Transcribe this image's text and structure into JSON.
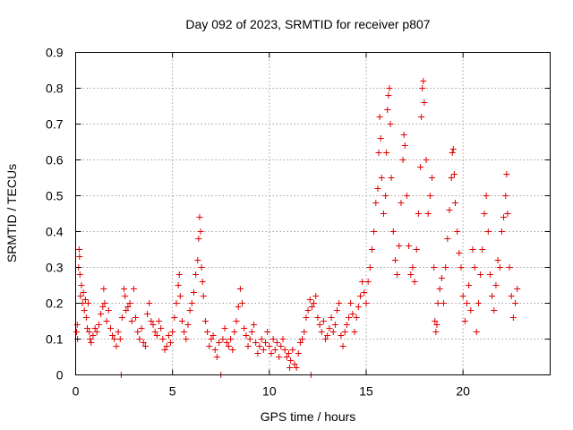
{
  "chart_data": {
    "type": "scatter",
    "title": "Day 092 of 2023, SRMTID for receiver p807",
    "xlabel": "GPS time / hours",
    "ylabel": "SRMTID / TECUs",
    "xlim": [
      0,
      24.5
    ],
    "ylim": [
      0,
      0.9
    ],
    "grid": true,
    "marker": "+",
    "colors": {
      "series": "#e00000",
      "grid": "#a0a0a0",
      "axes": "#000000"
    },
    "x_ticks": [
      0,
      5,
      10,
      15,
      20
    ],
    "x_tick_labels": [
      "0",
      "5",
      "10",
      "15",
      "20"
    ],
    "y_ticks": [
      0,
      0.1,
      0.2,
      0.3,
      0.4,
      0.5,
      0.6,
      0.7,
      0.8,
      0.9
    ],
    "y_tick_labels": [
      "0",
      "0.1",
      "0.2",
      "0.3",
      "0.4",
      "0.5",
      "0.6",
      "0.7",
      "0.8",
      "0.9"
    ],
    "series": [
      {
        "name": "SRMTID",
        "points": [
          [
            0.05,
            0.12
          ],
          [
            0.08,
            0.14
          ],
          [
            0.1,
            0.1
          ],
          [
            0.15,
            0.3
          ],
          [
            0.18,
            0.35
          ],
          [
            0.2,
            0.33
          ],
          [
            0.22,
            0.28
          ],
          [
            0.25,
            0.22
          ],
          [
            0.3,
            0.25
          ],
          [
            0.35,
            0.2
          ],
          [
            0.4,
            0.23
          ],
          [
            0.45,
            0.18
          ],
          [
            0.5,
            0.21
          ],
          [
            0.55,
            0.16
          ],
          [
            0.6,
            0.13
          ],
          [
            0.65,
            0.2
          ],
          [
            0.7,
            0.12
          ],
          [
            0.75,
            0.1
          ],
          [
            0.8,
            0.09
          ],
          [
            0.9,
            0.11
          ],
          [
            1.0,
            0.13
          ],
          [
            1.1,
            0.12
          ],
          [
            1.2,
            0.14
          ],
          [
            1.3,
            0.17
          ],
          [
            1.4,
            0.19
          ],
          [
            1.45,
            0.24
          ],
          [
            1.5,
            0.2
          ],
          [
            1.6,
            0.15
          ],
          [
            1.7,
            0.18
          ],
          [
            1.8,
            0.13
          ],
          [
            1.9,
            0.11
          ],
          [
            2.0,
            0.1
          ],
          [
            2.1,
            0.08
          ],
          [
            2.2,
            0.12
          ],
          [
            2.3,
            0.1
          ],
          [
            2.35,
            0.0
          ],
          [
            2.4,
            0.16
          ],
          [
            2.5,
            0.24
          ],
          [
            2.55,
            0.22
          ],
          [
            2.6,
            0.18
          ],
          [
            2.7,
            0.19
          ],
          [
            2.8,
            0.2
          ],
          [
            2.9,
            0.15
          ],
          [
            3.0,
            0.24
          ],
          [
            3.1,
            0.16
          ],
          [
            3.2,
            0.12
          ],
          [
            3.3,
            0.1
          ],
          [
            3.4,
            0.13
          ],
          [
            3.5,
            0.09
          ],
          [
            3.6,
            0.08
          ],
          [
            3.7,
            0.17
          ],
          [
            3.8,
            0.2
          ],
          [
            3.9,
            0.15
          ],
          [
            4.0,
            0.14
          ],
          [
            4.1,
            0.12
          ],
          [
            4.2,
            0.11
          ],
          [
            4.3,
            0.15
          ],
          [
            4.4,
            0.13
          ],
          [
            4.5,
            0.1
          ],
          [
            4.6,
            0.07
          ],
          [
            4.7,
            0.08
          ],
          [
            4.8,
            0.11
          ],
          [
            4.9,
            0.09
          ],
          [
            5.0,
            0.12
          ],
          [
            5.1,
            0.16
          ],
          [
            5.2,
            0.2
          ],
          [
            5.3,
            0.25
          ],
          [
            5.35,
            0.28
          ],
          [
            5.4,
            0.22
          ],
          [
            5.5,
            0.15
          ],
          [
            5.6,
            0.12
          ],
          [
            5.7,
            0.1
          ],
          [
            5.8,
            0.14
          ],
          [
            5.9,
            0.18
          ],
          [
            6.0,
            0.2
          ],
          [
            6.1,
            0.23
          ],
          [
            6.2,
            0.28
          ],
          [
            6.3,
            0.32
          ],
          [
            6.35,
            0.38
          ],
          [
            6.4,
            0.44
          ],
          [
            6.45,
            0.4
          ],
          [
            6.5,
            0.3
          ],
          [
            6.55,
            0.26
          ],
          [
            6.6,
            0.22
          ],
          [
            6.7,
            0.15
          ],
          [
            6.8,
            0.12
          ],
          [
            6.9,
            0.08
          ],
          [
            7.0,
            0.1
          ],
          [
            7.1,
            0.11
          ],
          [
            7.2,
            0.07
          ],
          [
            7.3,
            0.05
          ],
          [
            7.4,
            0.09
          ],
          [
            7.5,
            0.0
          ],
          [
            7.6,
            0.1
          ],
          [
            7.7,
            0.13
          ],
          [
            7.8,
            0.09
          ],
          [
            7.9,
            0.08
          ],
          [
            8.0,
            0.1
          ],
          [
            8.1,
            0.07
          ],
          [
            8.2,
            0.12
          ],
          [
            8.3,
            0.15
          ],
          [
            8.4,
            0.19
          ],
          [
            8.5,
            0.24
          ],
          [
            8.6,
            0.2
          ],
          [
            8.7,
            0.13
          ],
          [
            8.8,
            0.11
          ],
          [
            8.9,
            0.08
          ],
          [
            9.0,
            0.1
          ],
          [
            9.1,
            0.12
          ],
          [
            9.2,
            0.14
          ],
          [
            9.3,
            0.09
          ],
          [
            9.4,
            0.06
          ],
          [
            9.5,
            0.08
          ],
          [
            9.6,
            0.1
          ],
          [
            9.7,
            0.07
          ],
          [
            9.8,
            0.09
          ],
          [
            9.9,
            0.12
          ],
          [
            10.0,
            0.08
          ],
          [
            10.1,
            0.06
          ],
          [
            10.2,
            0.1
          ],
          [
            10.3,
            0.07
          ],
          [
            10.4,
            0.09
          ],
          [
            10.5,
            0.05
          ],
          [
            10.6,
            0.08
          ],
          [
            10.7,
            0.1
          ],
          [
            10.8,
            0.07
          ],
          [
            10.9,
            0.05
          ],
          [
            11.0,
            0.06
          ],
          [
            11.05,
            0.02
          ],
          [
            11.1,
            0.04
          ],
          [
            11.2,
            0.07
          ],
          [
            11.3,
            0.03
          ],
          [
            11.4,
            0.02
          ],
          [
            11.5,
            0.06
          ],
          [
            11.6,
            0.09
          ],
          [
            11.7,
            0.1
          ],
          [
            11.8,
            0.12
          ],
          [
            11.9,
            0.16
          ],
          [
            12.0,
            0.18
          ],
          [
            12.1,
            0.21
          ],
          [
            12.15,
            0.0
          ],
          [
            12.2,
            0.19
          ],
          [
            12.3,
            0.2
          ],
          [
            12.4,
            0.22
          ],
          [
            12.5,
            0.16
          ],
          [
            12.6,
            0.14
          ],
          [
            12.7,
            0.12
          ],
          [
            12.8,
            0.15
          ],
          [
            12.9,
            0.1
          ],
          [
            13.0,
            0.11
          ],
          [
            13.1,
            0.13
          ],
          [
            13.2,
            0.16
          ],
          [
            13.3,
            0.12
          ],
          [
            13.4,
            0.14
          ],
          [
            13.5,
            0.18
          ],
          [
            13.6,
            0.2
          ],
          [
            13.7,
            0.11
          ],
          [
            13.8,
            0.08
          ],
          [
            13.9,
            0.12
          ],
          [
            14.0,
            0.14
          ],
          [
            14.1,
            0.16
          ],
          [
            14.2,
            0.2
          ],
          [
            14.3,
            0.17
          ],
          [
            14.4,
            0.12
          ],
          [
            14.5,
            0.16
          ],
          [
            14.6,
            0.19
          ],
          [
            14.7,
            0.22
          ],
          [
            14.8,
            0.26
          ],
          [
            14.9,
            0.23
          ],
          [
            15.0,
            0.2
          ],
          [
            15.1,
            0.26
          ],
          [
            15.2,
            0.3
          ],
          [
            15.3,
            0.35
          ],
          [
            15.4,
            0.4
          ],
          [
            15.5,
            0.48
          ],
          [
            15.6,
            0.52
          ],
          [
            15.65,
            0.62
          ],
          [
            15.7,
            0.72
          ],
          [
            15.75,
            0.66
          ],
          [
            15.8,
            0.55
          ],
          [
            15.9,
            0.45
          ],
          [
            16.0,
            0.5
          ],
          [
            16.05,
            0.62
          ],
          [
            16.1,
            0.74
          ],
          [
            16.15,
            0.78
          ],
          [
            16.2,
            0.8
          ],
          [
            16.25,
            0.7
          ],
          [
            16.3,
            0.55
          ],
          [
            16.4,
            0.4
          ],
          [
            16.5,
            0.32
          ],
          [
            16.6,
            0.28
          ],
          [
            16.7,
            0.36
          ],
          [
            16.8,
            0.48
          ],
          [
            16.9,
            0.6
          ],
          [
            16.95,
            0.67
          ],
          [
            17.0,
            0.64
          ],
          [
            17.1,
            0.5
          ],
          [
            17.2,
            0.36
          ],
          [
            17.3,
            0.28
          ],
          [
            17.4,
            0.3
          ],
          [
            17.5,
            0.26
          ],
          [
            17.6,
            0.35
          ],
          [
            17.7,
            0.45
          ],
          [
            17.8,
            0.58
          ],
          [
            17.85,
            0.72
          ],
          [
            17.9,
            0.8
          ],
          [
            17.95,
            0.82
          ],
          [
            18.0,
            0.76
          ],
          [
            18.1,
            0.6
          ],
          [
            18.2,
            0.45
          ],
          [
            18.3,
            0.5
          ],
          [
            18.4,
            0.55
          ],
          [
            18.5,
            0.3
          ],
          [
            18.55,
            0.15
          ],
          [
            18.6,
            0.12
          ],
          [
            18.65,
            0.14
          ],
          [
            18.7,
            0.2
          ],
          [
            18.8,
            0.24
          ],
          [
            18.9,
            0.27
          ],
          [
            19.0,
            0.2
          ],
          [
            19.1,
            0.3
          ],
          [
            19.2,
            0.38
          ],
          [
            19.3,
            0.46
          ],
          [
            19.4,
            0.55
          ],
          [
            19.45,
            0.62
          ],
          [
            19.5,
            0.63
          ],
          [
            19.55,
            0.56
          ],
          [
            19.6,
            0.48
          ],
          [
            19.7,
            0.4
          ],
          [
            19.8,
            0.34
          ],
          [
            19.9,
            0.3
          ],
          [
            20.0,
            0.22
          ],
          [
            20.1,
            0.15
          ],
          [
            20.2,
            0.2
          ],
          [
            20.3,
            0.25
          ],
          [
            20.4,
            0.18
          ],
          [
            20.5,
            0.35
          ],
          [
            20.6,
            0.3
          ],
          [
            20.7,
            0.12
          ],
          [
            20.8,
            0.2
          ],
          [
            20.9,
            0.28
          ],
          [
            21.0,
            0.35
          ],
          [
            21.1,
            0.45
          ],
          [
            21.2,
            0.5
          ],
          [
            21.3,
            0.4
          ],
          [
            21.4,
            0.28
          ],
          [
            21.5,
            0.22
          ],
          [
            21.6,
            0.18
          ],
          [
            21.7,
            0.25
          ],
          [
            21.8,
            0.32
          ],
          [
            21.9,
            0.3
          ],
          [
            22.0,
            0.4
          ],
          [
            22.1,
            0.44
          ],
          [
            22.2,
            0.5
          ],
          [
            22.25,
            0.56
          ],
          [
            22.3,
            0.45
          ],
          [
            22.4,
            0.3
          ],
          [
            22.5,
            0.22
          ],
          [
            22.6,
            0.16
          ],
          [
            22.7,
            0.2
          ],
          [
            22.8,
            0.24
          ]
        ]
      }
    ]
  }
}
